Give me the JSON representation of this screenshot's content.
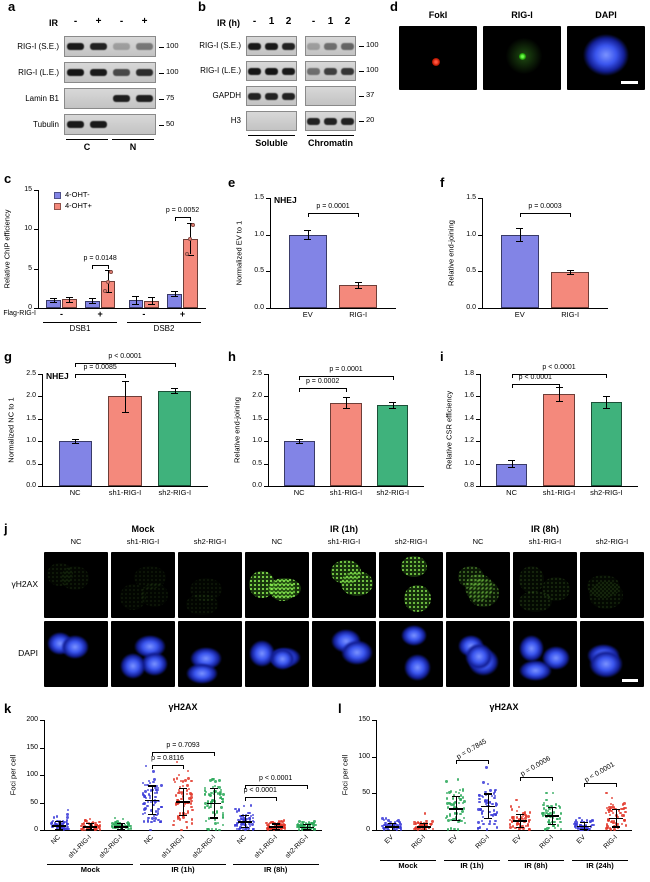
{
  "colors": {
    "bar_blue": "#8284e6",
    "bar_red": "#f4897c",
    "bar_green": "#3fb27c",
    "dot_blue": "#3939d8",
    "dot_red": "#e23528",
    "dot_green": "#2aa859"
  },
  "panel_a": {
    "label": "a",
    "header": "IR",
    "lanes": [
      "-",
      "+",
      "-",
      "+"
    ],
    "rows": [
      {
        "name": "RIG-I (S.E.)",
        "marker": "100",
        "bands": [
          0.95,
          0.9,
          0.25,
          0.45
        ]
      },
      {
        "name": "RIG-I (L.E.)",
        "marker": "100",
        "bands": [
          0.97,
          0.95,
          0.7,
          0.85
        ]
      },
      {
        "name": "Lamin B1",
        "marker": "75",
        "bands": [
          0.05,
          0.05,
          0.92,
          0.92
        ]
      },
      {
        "name": "Tubulin",
        "marker": "50",
        "bands": [
          0.95,
          0.95,
          0.05,
          0.05
        ]
      }
    ],
    "groups": [
      "C",
      "N"
    ]
  },
  "panel_b": {
    "label": "b",
    "header": "IR (h)",
    "lanes": [
      "-",
      "1",
      "2",
      "-",
      "1",
      "2"
    ],
    "rows": [
      {
        "name": "RIG-I (S.E.)",
        "marker": "100",
        "bands": [
          0.95,
          0.95,
          0.9,
          0.25,
          0.5,
          0.55
        ]
      },
      {
        "name": "RIG-I (L.E.)",
        "marker": "100",
        "bands": [
          0.97,
          0.97,
          0.95,
          0.5,
          0.75,
          0.8
        ]
      },
      {
        "name": "GAPDH",
        "marker": "37",
        "bands": [
          0.9,
          0.9,
          0.9,
          0.04,
          0.04,
          0.04
        ]
      },
      {
        "name": "H3",
        "marker": "20",
        "bands": [
          0.05,
          0.05,
          0.05,
          0.9,
          0.9,
          0.9
        ]
      }
    ],
    "groups": [
      "Soluble",
      "Chromatin"
    ]
  },
  "panel_d": {
    "label": "d",
    "images": [
      "FokI",
      "RIG-I",
      "DAPI"
    ]
  },
  "panel_c": {
    "label": "c",
    "chart": {
      "type": "bar",
      "ylabel": "Relative ChIP efficiency",
      "ylim": [
        0,
        15
      ],
      "yticks": [
        "0",
        "5",
        "10",
        "15"
      ],
      "legend": [
        {
          "label": "4-OHT-",
          "color": "bar_blue"
        },
        {
          "label": "4-OHT+",
          "color": "bar_red"
        }
      ],
      "bar_w": 0.088,
      "bars": [
        {
          "xf": 0.093,
          "v": 1.0,
          "e": 0.25,
          "color": "bar_blue"
        },
        {
          "xf": 0.187,
          "v": 1.1,
          "e": 0.35,
          "color": "bar_red"
        },
        {
          "xf": 0.323,
          "v": 0.95,
          "e": 0.3,
          "color": "bar_blue"
        },
        {
          "xf": 0.417,
          "v": 3.4,
          "e": 1.4,
          "color": "bar_red",
          "pts": [
            2.1,
            3.3,
            4.6
          ]
        },
        {
          "xf": 0.583,
          "v": 1.0,
          "e": 0.5,
          "color": "bar_blue"
        },
        {
          "xf": 0.677,
          "v": 0.9,
          "e": 0.45,
          "color": "bar_red"
        },
        {
          "xf": 0.813,
          "v": 1.8,
          "e": 0.3,
          "color": "bar_blue"
        },
        {
          "xf": 0.907,
          "v": 8.8,
          "e": 2.0,
          "color": "bar_red",
          "pts": [
            6.9,
            8.8,
            10.6
          ]
        }
      ],
      "brackets": [
        {
          "x1f": 0.323,
          "x2f": 0.417,
          "yv": 5.5,
          "text": "p = 0.0148"
        },
        {
          "x1f": 0.813,
          "x2f": 0.907,
          "yv": 11.6,
          "text": "p = 0.0052"
        }
      ],
      "xsigns_label": "Flag-RIG-I",
      "xsigns": [
        {
          "xf": 0.14,
          "t": "-"
        },
        {
          "xf": 0.37,
          "t": "+"
        },
        {
          "xf": 0.63,
          "t": "-"
        },
        {
          "xf": 0.86,
          "t": "+"
        }
      ],
      "xgroups": [
        {
          "x1f": 0.03,
          "x2f": 0.47,
          "label": "DSB1"
        },
        {
          "x1f": 0.53,
          "x2f": 0.97,
          "label": "DSB2"
        }
      ]
    }
  },
  "panel_e": {
    "label": "e",
    "chart": {
      "type": "bar",
      "title_inside": "NHEJ",
      "ylabel": "Normalized EV to 1",
      "ylim": [
        0,
        1.5
      ],
      "yticks": [
        "0.0",
        "0.5",
        "1.0",
        "1.5"
      ],
      "bar_w": 0.3,
      "bars": [
        {
          "xf": 0.3,
          "v": 1.0,
          "e": 0.06,
          "color": "bar_blue",
          "label": "EV"
        },
        {
          "xf": 0.7,
          "v": 0.31,
          "e": 0.04,
          "color": "bar_red",
          "label": "RIG-I"
        }
      ],
      "brackets": [
        {
          "x1f": 0.3,
          "x2f": 0.7,
          "yv": 1.3,
          "text": "p = 0.0001"
        }
      ]
    }
  },
  "panel_f": {
    "label": "f",
    "chart": {
      "type": "bar",
      "ylabel": "Relative end-joining",
      "ylim": [
        0,
        1.5
      ],
      "yticks": [
        "0.0",
        "0.5",
        "1.0",
        "1.5"
      ],
      "bar_w": 0.3,
      "bars": [
        {
          "xf": 0.3,
          "v": 1.0,
          "e": 0.09,
          "color": "bar_blue",
          "label": "EV"
        },
        {
          "xf": 0.7,
          "v": 0.49,
          "e": 0.03,
          "color": "bar_red",
          "label": "RIG-I"
        }
      ],
      "brackets": [
        {
          "x1f": 0.3,
          "x2f": 0.7,
          "yv": 1.3,
          "text": "p = 0.0003"
        }
      ]
    }
  },
  "panel_g": {
    "label": "g",
    "chart": {
      "type": "bar",
      "title_inside": "NHEJ",
      "ylabel": "Normalized NC to 1",
      "ylim": [
        0,
        2.5
      ],
      "yticks": [
        "0.0",
        "0.5",
        "1.0",
        "1.5",
        "2.0",
        "2.5"
      ],
      "bar_w": 0.2,
      "bars": [
        {
          "xf": 0.2,
          "v": 1.0,
          "e": 0.05,
          "color": "bar_blue",
          "label": "NC"
        },
        {
          "xf": 0.5,
          "v": 2.0,
          "e": 0.35,
          "color": "bar_red",
          "label": "sh1-RIG-I"
        },
        {
          "xf": 0.8,
          "v": 2.13,
          "e": 0.05,
          "color": "bar_green",
          "label": "sh2-RIG-I"
        }
      ],
      "brackets": [
        {
          "x1f": 0.2,
          "x2f": 0.5,
          "yv": 2.5,
          "text": "p = 0.0085"
        },
        {
          "x1f": 0.2,
          "x2f": 0.8,
          "yv": 2.75,
          "text": "p < 0.0001"
        }
      ]
    }
  },
  "panel_h": {
    "label": "h",
    "chart": {
      "type": "bar",
      "ylabel": "Relative end-joining",
      "ylim": [
        0,
        2.5
      ],
      "yticks": [
        "0.0",
        "0.5",
        "1.0",
        "1.5",
        "2.0",
        "2.5"
      ],
      "bar_w": 0.2,
      "bars": [
        {
          "xf": 0.2,
          "v": 1.0,
          "e": 0.04,
          "color": "bar_blue",
          "label": "NC"
        },
        {
          "xf": 0.5,
          "v": 1.86,
          "e": 0.12,
          "color": "bar_red",
          "label": "sh1-RIG-I"
        },
        {
          "xf": 0.8,
          "v": 1.8,
          "e": 0.07,
          "color": "bar_green",
          "label": "sh2-RIG-I"
        }
      ],
      "brackets": [
        {
          "x1f": 0.2,
          "x2f": 0.5,
          "yv": 2.18,
          "text": "p = 0.0002"
        },
        {
          "x1f": 0.2,
          "x2f": 0.8,
          "yv": 2.45,
          "text": "p = 0.0001"
        }
      ]
    }
  },
  "panel_i": {
    "label": "i",
    "chart": {
      "type": "bar",
      "ylabel": "Relative CSR efficiency",
      "ylim": [
        0.8,
        1.8
      ],
      "yticks": [
        "0.8",
        "1.0",
        "1.2",
        "1.4",
        "1.6",
        "1.8"
      ],
      "bar_w": 0.2,
      "bars": [
        {
          "xf": 0.2,
          "v": 1.0,
          "e": 0.03,
          "color": "bar_blue",
          "label": "NC"
        },
        {
          "xf": 0.5,
          "v": 1.62,
          "e": 0.06,
          "color": "bar_red",
          "label": "sh1-RIG-I"
        },
        {
          "xf": 0.8,
          "v": 1.55,
          "e": 0.05,
          "color": "bar_green",
          "label": "sh2-RIG-I"
        }
      ],
      "brackets": [
        {
          "x1f": 0.2,
          "x2f": 0.5,
          "yv": 1.71,
          "text": "p < 0.0001"
        },
        {
          "x1f": 0.2,
          "x2f": 0.8,
          "yv": 1.8,
          "text": "p < 0.0001"
        }
      ]
    }
  },
  "panel_j": {
    "label": "j",
    "row_labels": [
      "γH2AX",
      "DAPI"
    ],
    "col_groups": [
      {
        "label": "Mock",
        "cols": [
          "NC",
          "sh1-RIG-I",
          "sh2-RIG-I"
        ]
      },
      {
        "label": "IR (1h)",
        "cols": [
          "NC",
          "sh1-RIG-I",
          "sh2-RIG-I"
        ]
      },
      {
        "label": "IR (8h)",
        "cols": [
          "NC",
          "sh1-RIG-I",
          "sh2-RIG-I"
        ]
      }
    ],
    "gh2ax_levels": [
      0.12,
      0.1,
      0.1,
      1,
      0.95,
      0.9,
      0.45,
      0.18,
      0.15
    ]
  },
  "panel_k": {
    "label": "k",
    "chart": {
      "type": "scatter",
      "seed": 11,
      "title": "γH2AX",
      "ylabel": "Foci per cell",
      "ylim": [
        0,
        200
      ],
      "yticks": [
        "0",
        "50",
        "100",
        "150",
        "200"
      ],
      "columns": [
        {
          "label": "NC",
          "color": "dot_blue",
          "mean": 9,
          "sd": 8,
          "n": 55
        },
        {
          "label": "sh1-RIG-I",
          "color": "dot_red",
          "mean": 7,
          "sd": 6,
          "n": 55
        },
        {
          "label": "sh2-RIG-I",
          "color": "dot_green",
          "mean": 7,
          "sd": 6,
          "n": 55
        },
        {
          "label": "NC",
          "color": "dot_blue",
          "mean": 55,
          "sd": 26,
          "n": 70
        },
        {
          "label": "sh1-RIG-I",
          "color": "dot_red",
          "mean": 52,
          "sd": 25,
          "n": 70
        },
        {
          "label": "sh2-RIG-I",
          "color": "dot_green",
          "mean": 50,
          "sd": 27,
          "n": 70
        },
        {
          "label": "NC",
          "color": "dot_blue",
          "mean": 16,
          "sd": 11,
          "n": 60
        },
        {
          "label": "sh1-RIG-I",
          "color": "dot_red",
          "mean": 7,
          "sd": 5,
          "n": 60
        },
        {
          "label": "sh2-RIG-I",
          "color": "dot_green",
          "mean": 6,
          "sd": 5,
          "n": 60
        }
      ],
      "brackets": [
        {
          "c1": 3,
          "c2": 4,
          "yv": 118,
          "text": "p = 0.8116"
        },
        {
          "c1": 3,
          "c2": 5,
          "yv": 142,
          "text": "p = 0.7093"
        },
        {
          "c1": 6,
          "c2": 7,
          "yv": 60,
          "text": "p < 0.0001"
        },
        {
          "c1": 6,
          "c2": 8,
          "yv": 82,
          "text": "p < 0.0001"
        }
      ],
      "groups": [
        {
          "c1": 0,
          "c2": 2,
          "label": "Mock"
        },
        {
          "c1": 3,
          "c2": 5,
          "label": "IR (1h)"
        },
        {
          "c1": 6,
          "c2": 8,
          "label": "IR (8h)"
        }
      ]
    }
  },
  "panel_l": {
    "label": "l",
    "chart": {
      "type": "scatter",
      "seed": 29,
      "title": "γH2AX",
      "ylabel": "Foci per cell",
      "ylim": [
        0,
        150
      ],
      "yticks": [
        "0",
        "50",
        "100",
        "150"
      ],
      "columns": [
        {
          "label": "EV",
          "color": "dot_blue",
          "mean": 5,
          "sd": 5,
          "n": 45
        },
        {
          "label": "RIG-I",
          "color": "dot_red",
          "mean": 5,
          "sd": 5,
          "n": 45
        },
        {
          "label": "EV",
          "color": "dot_green",
          "mean": 30,
          "sd": 16,
          "n": 60
        },
        {
          "label": "RIG-I",
          "color": "dot_blue",
          "mean": 33,
          "sd": 17,
          "n": 60
        },
        {
          "label": "EV",
          "color": "dot_red",
          "mean": 13,
          "sd": 9,
          "n": 55
        },
        {
          "label": "RIG-I",
          "color": "dot_green",
          "mean": 20,
          "sd": 12,
          "n": 55
        },
        {
          "label": "EV",
          "color": "dot_blue",
          "mean": 6,
          "sd": 5,
          "n": 50
        },
        {
          "label": "RIG-I",
          "color": "dot_red",
          "mean": 17,
          "sd": 12,
          "n": 55
        }
      ],
      "brackets": [
        {
          "c1": 2,
          "c2": 3,
          "yv": 95,
          "text": "p = 0.7845",
          "tilt": true
        },
        {
          "c1": 4,
          "c2": 5,
          "yv": 72,
          "text": "p = 0.0006",
          "tilt": true
        },
        {
          "c1": 6,
          "c2": 7,
          "yv": 64,
          "text": "p < 0.0001",
          "tilt": true
        }
      ],
      "groups": [
        {
          "c1": 0,
          "c2": 1,
          "label": "Mock"
        },
        {
          "c1": 2,
          "c2": 3,
          "label": "IR (1h)"
        },
        {
          "c1": 4,
          "c2": 5,
          "label": "IR (8h)"
        },
        {
          "c1": 6,
          "c2": 7,
          "label": "IR (24h)"
        }
      ]
    }
  }
}
